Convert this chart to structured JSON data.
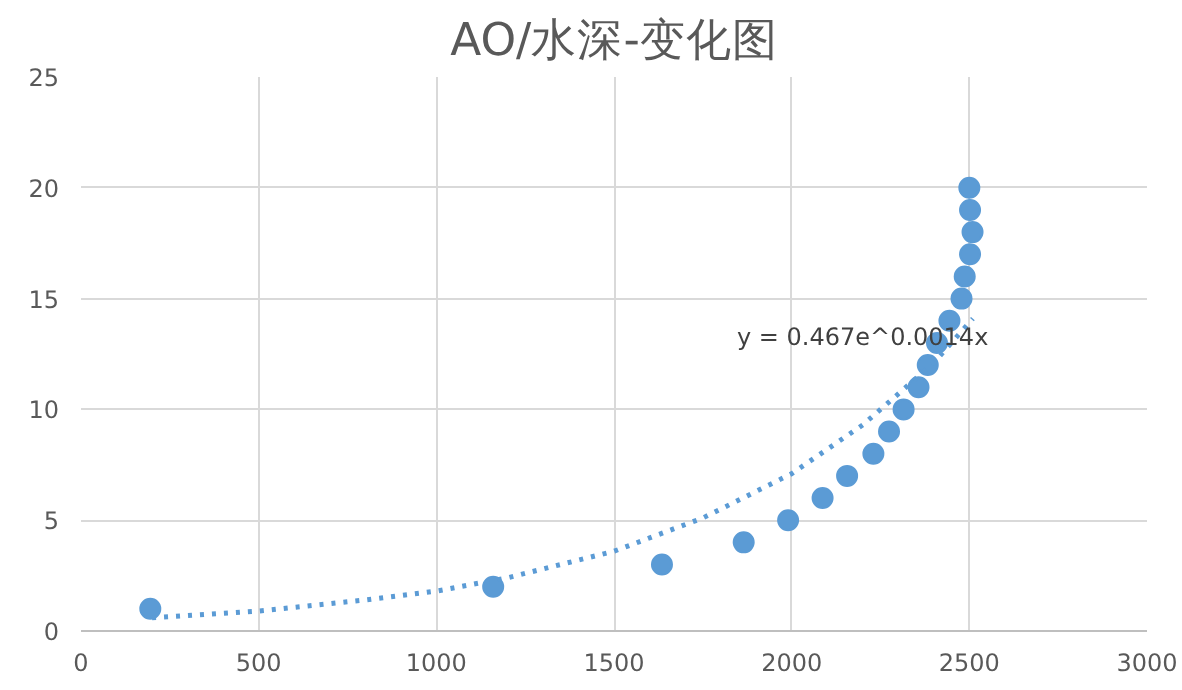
{
  "chart_data": {
    "type": "scatter",
    "title": "AO/水深-变化图",
    "xlim": [
      0,
      3000
    ],
    "xticks": [
      0,
      500,
      1000,
      1500,
      2000,
      2500,
      3000
    ],
    "ylim": [
      0,
      25
    ],
    "yticks": [
      0,
      5,
      10,
      15,
      20,
      25
    ],
    "grid": true,
    "marker": "circle",
    "annotations": [
      "y = 0.467e^0.0014x"
    ],
    "series": [
      {
        "color": "#5b9bd5",
        "x": [
          195,
          1160,
          1635,
          1865,
          1990,
          2087,
          2156,
          2230,
          2274,
          2315,
          2357,
          2383,
          2409,
          2444,
          2478,
          2487,
          2502,
          2509,
          2502,
          2500
        ],
        "values": [
          1,
          2,
          3,
          4,
          5,
          6,
          7,
          8,
          9,
          10,
          11,
          12,
          13,
          14,
          15,
          16,
          17,
          18,
          19,
          20
        ]
      },
      {
        "type": "line",
        "color": "#5b9bd5",
        "line_style": "dotted",
        "marker": "none",
        "x": [
          200,
          500,
          800,
          1000,
          1200,
          1500,
          1750,
          2000,
          2200,
          2400,
          2510
        ],
        "values": [
          0.6,
          0.9,
          1.4,
          1.8,
          2.4,
          3.6,
          5.1,
          7.1,
          9.3,
          12.1,
          14.1
        ]
      }
    ]
  }
}
